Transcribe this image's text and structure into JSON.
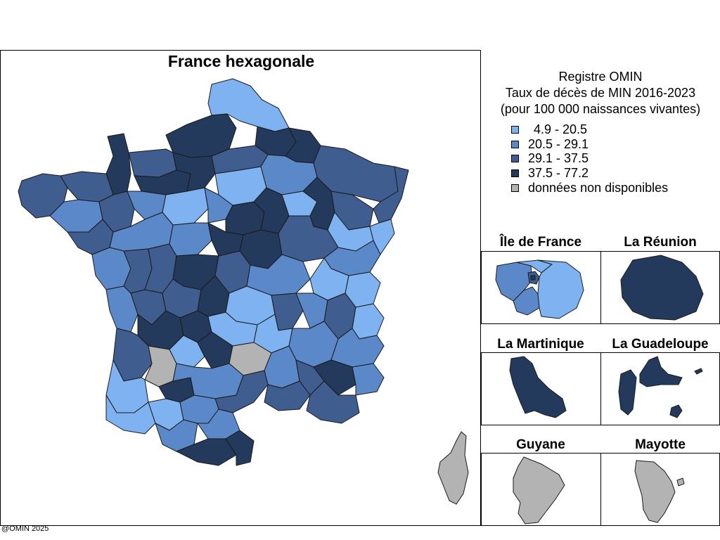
{
  "main_map": {
    "title": "France hexagonale"
  },
  "legend": {
    "title_lines": [
      "Registre OMIN",
      "Taux de décès de MIN 2016-2023",
      "(pour 100 000 naissances vivantes)"
    ],
    "classes": [
      {
        "label": "4.9 - 20.5",
        "color": "#7fb2f0"
      },
      {
        "label": "20.5 - 29.1",
        "color": "#5b88c9"
      },
      {
        "label": "29.1 - 37.5",
        "color": "#3f5d8f"
      },
      {
        "label": "37.5 - 77.2",
        "color": "#243a5c"
      },
      {
        "label": "données non disponibles",
        "color": "#b3b3b3"
      }
    ]
  },
  "insets": [
    {
      "title": "Île de France"
    },
    {
      "title": "La Réunion"
    },
    {
      "title": "La Martinique"
    },
    {
      "title": "La Guadeloupe"
    },
    {
      "title": "Guyane"
    },
    {
      "title": "Mayotte"
    }
  ],
  "credit": "@OMIN 2025"
}
